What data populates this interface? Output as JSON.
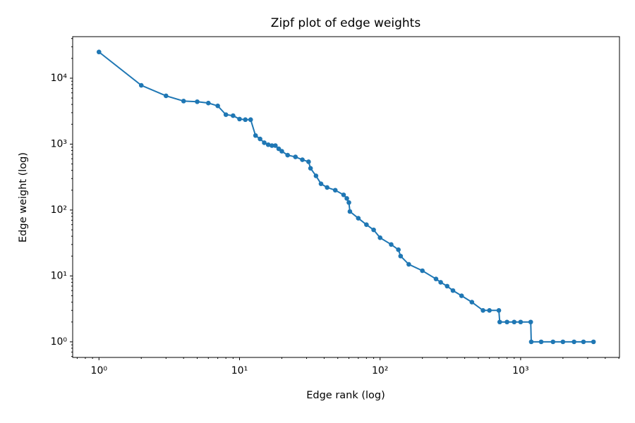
{
  "chart_data": {
    "type": "line",
    "title": "Zipf plot of edge weights",
    "x_label": "Edge rank (log)",
    "y_label": "Edge weight (log)",
    "x_scale": "log",
    "y_scale": "log",
    "grid": false,
    "xlim": [
      0.65,
      5050
    ],
    "ylim": [
      0.58,
      42700
    ],
    "xticks": [
      {
        "value": 1,
        "label": "10⁰"
      },
      {
        "value": 10,
        "label": "10¹"
      },
      {
        "value": 100,
        "label": "10²"
      },
      {
        "value": 1000,
        "label": "10³"
      }
    ],
    "yticks": [
      {
        "value": 1,
        "label": "10⁰"
      },
      {
        "value": 10,
        "label": "10¹"
      },
      {
        "value": 100,
        "label": "10²"
      },
      {
        "value": 1000,
        "label": "10³"
      },
      {
        "value": 10000,
        "label": "10⁴"
      }
    ],
    "x": [
      1,
      2,
      3,
      4,
      5,
      6,
      7,
      8,
      9,
      10,
      11,
      12,
      13,
      14,
      15,
      16,
      17,
      18,
      19,
      20,
      22,
      25,
      28,
      31,
      32,
      35,
      38,
      42,
      48,
      55,
      58,
      60,
      61,
      70,
      80,
      90,
      100,
      120,
      135,
      140,
      160,
      200,
      250,
      270,
      300,
      330,
      380,
      450,
      540,
      600,
      700,
      710,
      800,
      900,
      1000,
      1180,
      1190,
      1400,
      1700,
      2000,
      2400,
      2800,
      3300
    ],
    "series": [
      {
        "name": "edge weights",
        "color": "#1f77b4",
        "values": [
          25000,
          7800,
          5400,
          4500,
          4400,
          4200,
          3800,
          2800,
          2700,
          2400,
          2350,
          2350,
          1350,
          1200,
          1050,
          980,
          950,
          950,
          850,
          780,
          680,
          640,
          580,
          540,
          430,
          330,
          250,
          220,
          200,
          170,
          150,
          130,
          95,
          75,
          60,
          50,
          38,
          30,
          25,
          20,
          15,
          12,
          9,
          8,
          7,
          6,
          5,
          4,
          3,
          3,
          3,
          2,
          2,
          2,
          2,
          2,
          1,
          1,
          1,
          1,
          1,
          1,
          1
        ]
      }
    ]
  }
}
